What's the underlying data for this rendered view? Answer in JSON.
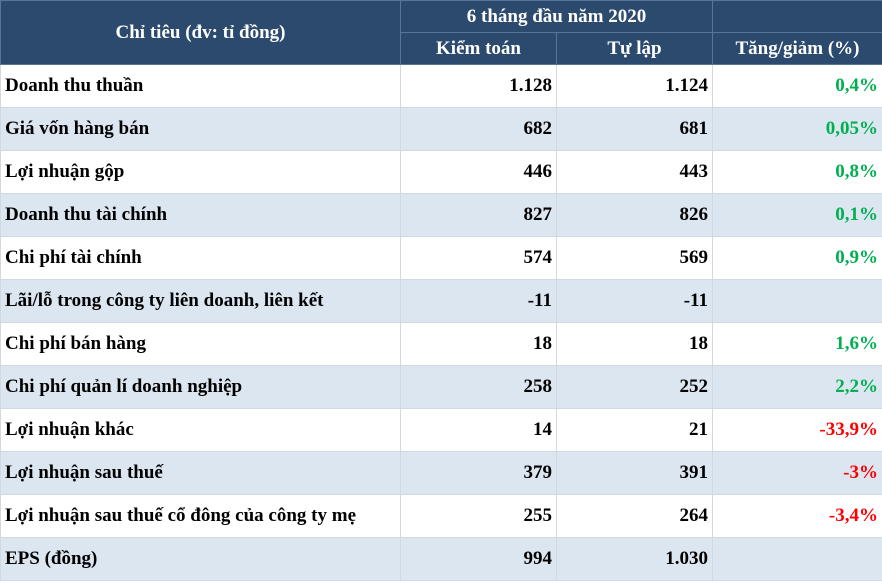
{
  "table": {
    "header": {
      "first": "Chỉ tiêu (đv: tỉ đồng)",
      "group": "6 tháng đầu năm 2020",
      "columns": [
        "Kiểm toán",
        "Tự lập",
        "Tăng/giảm (%)"
      ]
    },
    "rows": [
      {
        "label": "Doanh thu thuần",
        "audited": "1.128",
        "self": "1.124",
        "change": "0,4%",
        "change_color": "#00b050"
      },
      {
        "label": "Giá vốn hàng bán",
        "audited": "682",
        "self": "681",
        "change": "0,05%",
        "change_color": "#00b050"
      },
      {
        "label": "Lợi nhuận gộp",
        "audited": "446",
        "self": "443",
        "change": "0,8%",
        "change_color": "#00b050"
      },
      {
        "label": "Doanh thu tài chính",
        "audited": "827",
        "self": "826",
        "change": "0,1%",
        "change_color": "#00b050"
      },
      {
        "label": "Chi phí tài chính",
        "audited": "574",
        "self": "569",
        "change": "0,9%",
        "change_color": "#00b050"
      },
      {
        "label": "Lãi/lỗ trong công ty liên doanh, liên kết",
        "audited": "-11",
        "self": "-11"
      },
      {
        "label": "Chi phí bán hàng",
        "audited": "18",
        "self": "18",
        "change": "1,6%",
        "change_color": "#00b050"
      },
      {
        "label": "Chi phí quản lí doanh nghiệp",
        "audited": "258",
        "self": "252",
        "change": "2,2%",
        "change_color": "#00b050"
      },
      {
        "label": "Lợi nhuận khác",
        "audited": "14",
        "self": "21",
        "change": "-33,9%",
        "change_color": "#ff0000"
      },
      {
        "label": "Lợi nhuận sau thuế",
        "audited": "379",
        "self": "391",
        "change": "-3%",
        "change_color": "#ff0000"
      },
      {
        "label": "Lợi nhuận sau thuế cổ đông của công ty mẹ",
        "audited": "255",
        "self": "264",
        "change": "-3,4%",
        "change_color": "#ff0000"
      },
      {
        "label": "EPS (đồng)",
        "audited": "994",
        "self": "1.030"
      }
    ]
  }
}
